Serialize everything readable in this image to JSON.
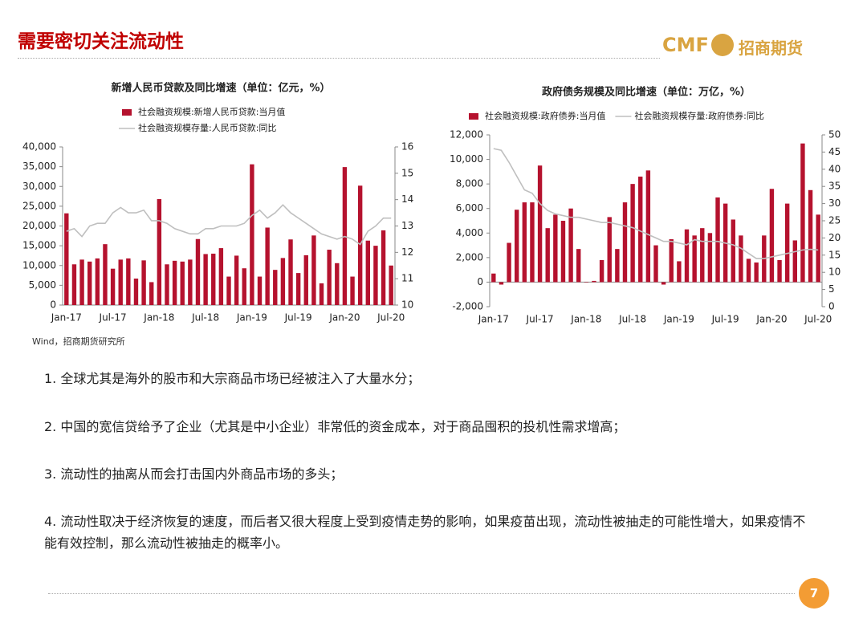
{
  "header": {
    "title": "需要密切关注流动性",
    "logo_text": "CMF",
    "logo_name": "招商期货"
  },
  "chart_data": [
    {
      "type": "bar",
      "title": "新增人民币贷款及同比增速（单位：亿元，%）",
      "legend": "top",
      "categories": [
        "Jan-17",
        null,
        null,
        null,
        null,
        null,
        "Jul-17",
        null,
        null,
        null,
        null,
        null,
        "Jan-18",
        null,
        null,
        null,
        null,
        null,
        "Jul-18",
        null,
        null,
        null,
        null,
        null,
        "Jan-19",
        null,
        null,
        null,
        null,
        null,
        "Jul-19",
        null,
        null,
        null,
        null,
        null,
        "Jan-20",
        null,
        null,
        null,
        null,
        null,
        "Jul-20"
      ],
      "ylim": [
        0,
        40000
      ],
      "yticks": [
        0,
        {
          "value": 5000,
          "label": "5,000"
        },
        {
          "value": 10000,
          "label": "10,000"
        },
        {
          "value": 15000,
          "label": "15,000"
        },
        {
          "value": 20000,
          "label": "20,000"
        },
        {
          "value": 25000,
          "label": "25,000"
        },
        {
          "value": 30000,
          "label": "30,000"
        },
        {
          "value": 35000,
          "label": "35,000"
        },
        {
          "value": 40000,
          "label": "40,000"
        }
      ],
      "y2lim": [
        10,
        16
      ],
      "y2ticks": [
        10,
        11,
        12,
        13,
        14,
        15,
        16
      ],
      "series": [
        {
          "name": "社会融资规模:新增人民币贷款:当月值",
          "color": "#b5122e",
          "values": [
            23200,
            10300,
            11500,
            11000,
            11800,
            15400,
            9200,
            11500,
            11800,
            6700,
            11300,
            5800,
            26800,
            10300,
            11200,
            11000,
            11500,
            16700,
            12900,
            13000,
            14400,
            7200,
            12500,
            9300,
            35600,
            7200,
            19600,
            8900,
            11900,
            16600,
            8100,
            12600,
            17600,
            5500,
            14000,
            10600,
            34900,
            7200,
            30200,
            16300,
            15000,
            18900,
            10000
          ]
        },
        {
          "name": "社会融资规模存量:人民币贷款:同比",
          "color": "#bfbfbf",
          "axis": "y2",
          "values": [
            12.8,
            12.9,
            12.6,
            13.0,
            13.1,
            13.1,
            13.5,
            13.7,
            13.5,
            13.5,
            13.6,
            13.2,
            13.2,
            13.1,
            12.9,
            12.8,
            12.7,
            12.7,
            12.9,
            12.9,
            13.0,
            13.0,
            13.0,
            13.1,
            13.4,
            13.6,
            13.3,
            13.5,
            13.8,
            13.5,
            13.3,
            13.1,
            12.9,
            12.7,
            12.6,
            12.5,
            12.6,
            12.5,
            12.3,
            12.8,
            13.0,
            13.3,
            13.3
          ]
        }
      ]
    },
    {
      "type": "bar",
      "title": "政府债务规模及同比增速（单位：万亿，%）",
      "legend": "top",
      "categories": [
        "Jan-17",
        null,
        null,
        null,
        null,
        null,
        "Jul-17",
        null,
        null,
        null,
        null,
        null,
        "Jan-18",
        null,
        null,
        null,
        null,
        null,
        "Jul-18",
        null,
        null,
        null,
        null,
        null,
        "Jan-19",
        null,
        null,
        null,
        null,
        null,
        "Jul-19",
        null,
        null,
        null,
        null,
        null,
        "Jan-20",
        null,
        null,
        null,
        null,
        null,
        "Jul-20"
      ],
      "ylim": [
        -2000,
        12000
      ],
      "yticks": [
        {
          "value": -2000,
          "label": "-2,000"
        },
        0,
        {
          "value": 2000,
          "label": "2,000"
        },
        {
          "value": 4000,
          "label": "4,000"
        },
        {
          "value": 6000,
          "label": "6,000"
        },
        {
          "value": 8000,
          "label": "8,000"
        },
        {
          "value": 10000,
          "label": "10,000"
        },
        {
          "value": 12000,
          "label": "12,000"
        }
      ],
      "y2lim": [
        0,
        50
      ],
      "y2ticks": [
        0,
        5,
        10,
        15,
        20,
        25,
        30,
        35,
        40,
        45,
        50
      ],
      "series": [
        {
          "name": "社会融资规模:政府债券:当月值",
          "color": "#b5122e",
          "values": [
            700,
            -200,
            3200,
            5900,
            6500,
            6500,
            9500,
            4400,
            5500,
            5000,
            6000,
            2700,
            0,
            100,
            1800,
            5300,
            2700,
            6500,
            8000,
            8600,
            9100,
            3000,
            -200,
            3500,
            1700,
            4300,
            3800,
            4400,
            4000,
            6900,
            6400,
            5100,
            3800,
            1900,
            1600,
            3800,
            7600,
            1800,
            6400,
            3400,
            11300,
            7500,
            5500
          ]
        },
        {
          "name": "社会融资规模存量:政府债券:同比",
          "color": "#bfbfbf",
          "axis": "y2",
          "values": [
            46,
            45.5,
            42,
            38,
            34,
            33,
            30,
            28,
            27,
            26.5,
            26,
            26,
            25.5,
            25,
            24.5,
            24.5,
            24,
            23.5,
            23,
            22,
            21,
            20,
            19,
            19,
            18.5,
            18,
            19.5,
            19,
            19,
            19,
            18.5,
            18,
            17,
            15.5,
            14,
            14,
            14.5,
            15,
            15.5,
            16,
            16.5,
            16.7,
            16.5
          ]
        }
      ]
    }
  ],
  "source": "Wind，招商期货研究所",
  "bullets": [
    "1.  全球尤其是海外的股市和大宗商品市场已经被注入了大量水分；",
    "2.  中国的宽信贷给予了企业（尤其是中小企业）非常低的资金成本，对于商品囤积的投机性需求增高；",
    "3.  流动性的抽离从而会打击国内外商品市场的多头；",
    "4.  流动性取决于经济恢复的速度，而后者又很大程度上受到疫情走势的影响，如果疫苗出现，流动性被抽走的可能性增大，如果疫情不能有效控制，那么流动性被抽走的概率小。"
  ],
  "page_number": "7"
}
